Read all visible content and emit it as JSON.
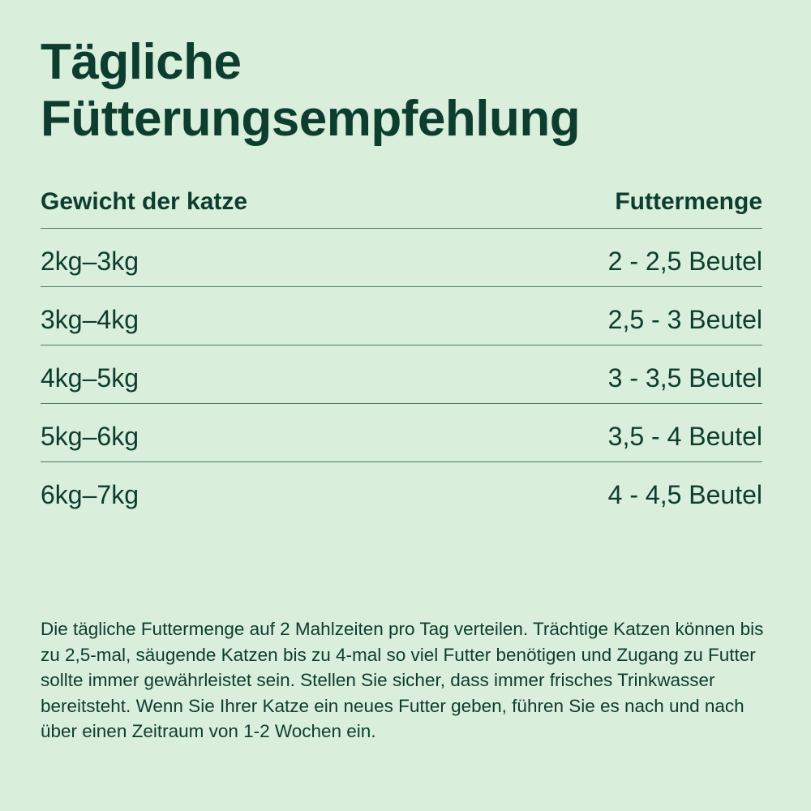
{
  "title": {
    "line1": "Tägliche",
    "line2": "Fütterungsempfehlung"
  },
  "table": {
    "headers": [
      "Gewicht der katze",
      "Futtermenge"
    ],
    "rows": [
      [
        "2kg–3kg",
        "2 - 2,5 Beutel"
      ],
      [
        "3kg–4kg",
        "2,5 - 3 Beutel"
      ],
      [
        "4kg–5kg",
        "3 - 3,5 Beutel"
      ],
      [
        "5kg–6kg",
        "3,5 - 4 Beutel"
      ],
      [
        "6kg–7kg",
        "4 - 4,5 Beutel"
      ]
    ]
  },
  "note": "Die tägliche Futtermenge auf 2 Mahlzeiten pro Tag verteilen. Trächtige Katzen können bis zu 2,5-mal, säugende Katzen bis zu 4-mal so viel Futter benötigen und Zugang zu Futter sollte immer gewährleistet sein. Stellen Sie sicher, dass immer frisches Trinkwasser bereitsteht. Wenn Sie Ihrer Katze ein neues Futter geben, führen Sie es nach und nach über einen Zeitraum von 1-2 Wochen ein.",
  "colors": {
    "background": "#d9eedb",
    "text": "#0d3d2f"
  }
}
